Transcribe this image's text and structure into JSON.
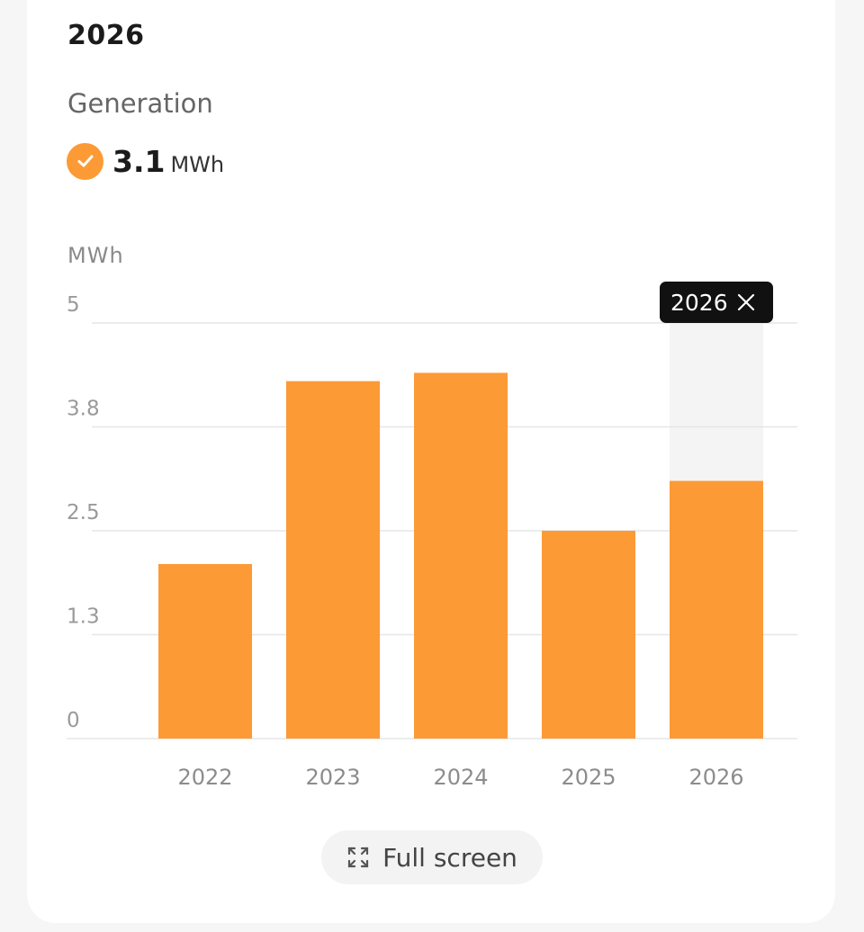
{
  "header": {
    "year": "2026",
    "generation_label": "Generation",
    "generation_value": "3.1",
    "generation_unit": "MWh"
  },
  "icons": {
    "status": "check-circle-icon",
    "close": "close-icon",
    "fullscreen": "expand-icon"
  },
  "colors": {
    "accent": "#fc9a36",
    "tooltip_bg": "#111111",
    "highlight_bg": "#f4f4f4"
  },
  "chart_data": {
    "type": "bar",
    "title": "",
    "xlabel": "",
    "ylabel": "MWh",
    "categories": [
      "2022",
      "2023",
      "2024",
      "2025",
      "2026"
    ],
    "values": [
      2.1,
      4.3,
      4.4,
      2.5,
      3.1
    ],
    "ylim": [
      0,
      5
    ],
    "yticks": [
      0,
      1.25,
      2.5,
      3.75,
      5
    ],
    "ytick_labels": [
      "0",
      "1.3",
      "2.5",
      "3.8",
      "5"
    ],
    "grid": true,
    "legend": "none",
    "selected_category": "2026",
    "tooltip_label": "2026"
  },
  "controls": {
    "fullscreen_label": "Full screen"
  }
}
